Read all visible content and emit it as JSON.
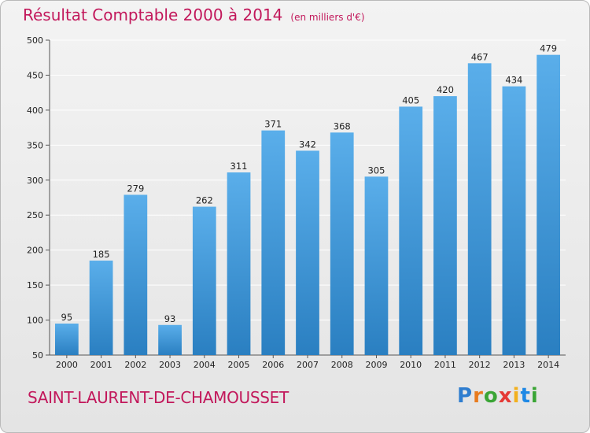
{
  "title": "Résultat Comptable 2000 à 2014",
  "unit": "(en milliers d'€)",
  "commune": "SAINT-LAURENT-DE-CHAMOUSSET",
  "logo": {
    "letters": [
      "P",
      "r",
      "o",
      "x",
      "i",
      "t",
      "i"
    ]
  },
  "colors": {
    "bar_top": "#5aaeea",
    "bar_bottom": "#2a7fc1",
    "title": "#c2185b",
    "grid": "#ffffff"
  },
  "chart_data": {
    "type": "bar",
    "categories": [
      "2000",
      "2001",
      "2002",
      "2003",
      "2004",
      "2005",
      "2006",
      "2007",
      "2008",
      "2009",
      "2010",
      "2011",
      "2012",
      "2013",
      "2014"
    ],
    "values": [
      95,
      185,
      279,
      93,
      262,
      311,
      371,
      342,
      368,
      305,
      405,
      420,
      467,
      434,
      479
    ],
    "value_labels": [
      "95",
      "185",
      "279",
      "93",
      "262",
      "311",
      "371",
      "342",
      "368",
      "305",
      "405",
      "420",
      "467",
      "434",
      "479"
    ],
    "y_ticks": [
      "50",
      "100",
      "150",
      "200",
      "250",
      "300",
      "350",
      "400",
      "450",
      "500"
    ],
    "ylim": [
      50,
      500
    ],
    "grid": true,
    "xlabel": "",
    "ylabel": ""
  }
}
